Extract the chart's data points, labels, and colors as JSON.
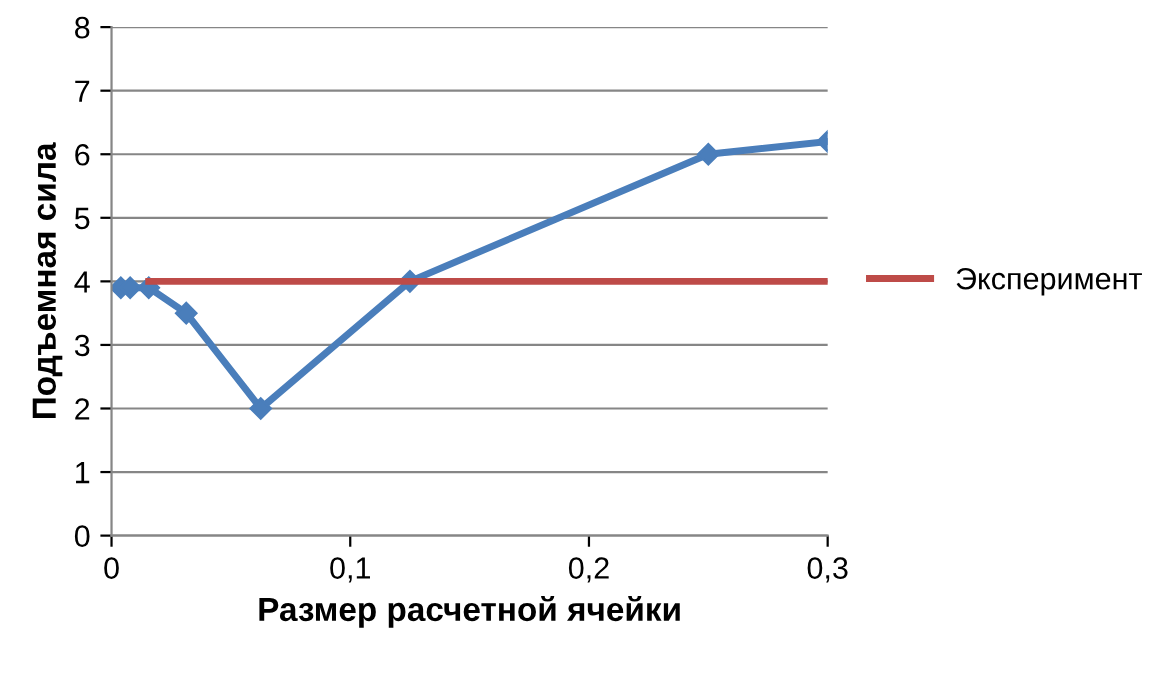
{
  "chart_data": {
    "type": "line",
    "xlabel": "Размер расчетной ячейки",
    "ylabel": "Подъемная сила",
    "xlim": [
      0,
      0.3
    ],
    "xticks": [
      0,
      {
        "value": 0.1,
        "label": "0,1"
      },
      {
        "value": 0.2,
        "label": "0,2"
      },
      {
        "value": 0.3,
        "label": "0,3"
      }
    ],
    "ylim": [
      0,
      8
    ],
    "yticks": [
      0,
      1,
      2,
      3,
      4,
      5,
      6,
      7,
      8
    ],
    "grid": "y",
    "legend": "right",
    "series": [
      {
        "color": "#4a7ebb",
        "marker": "diamond",
        "x": [
          0.0039,
          0.0078,
          0.0156,
          0.0313,
          0.0625,
          0.125,
          0.25,
          0.3
        ],
        "values": [
          3.9,
          3.9,
          3.9,
          3.5,
          2.0,
          4.0,
          6.0,
          6.2
        ]
      },
      {
        "name": "Эксперимент",
        "color": "#be4b48",
        "marker": "none",
        "x": [
          0.0156,
          0.3
        ],
        "values": [
          4,
          4
        ]
      }
    ]
  }
}
